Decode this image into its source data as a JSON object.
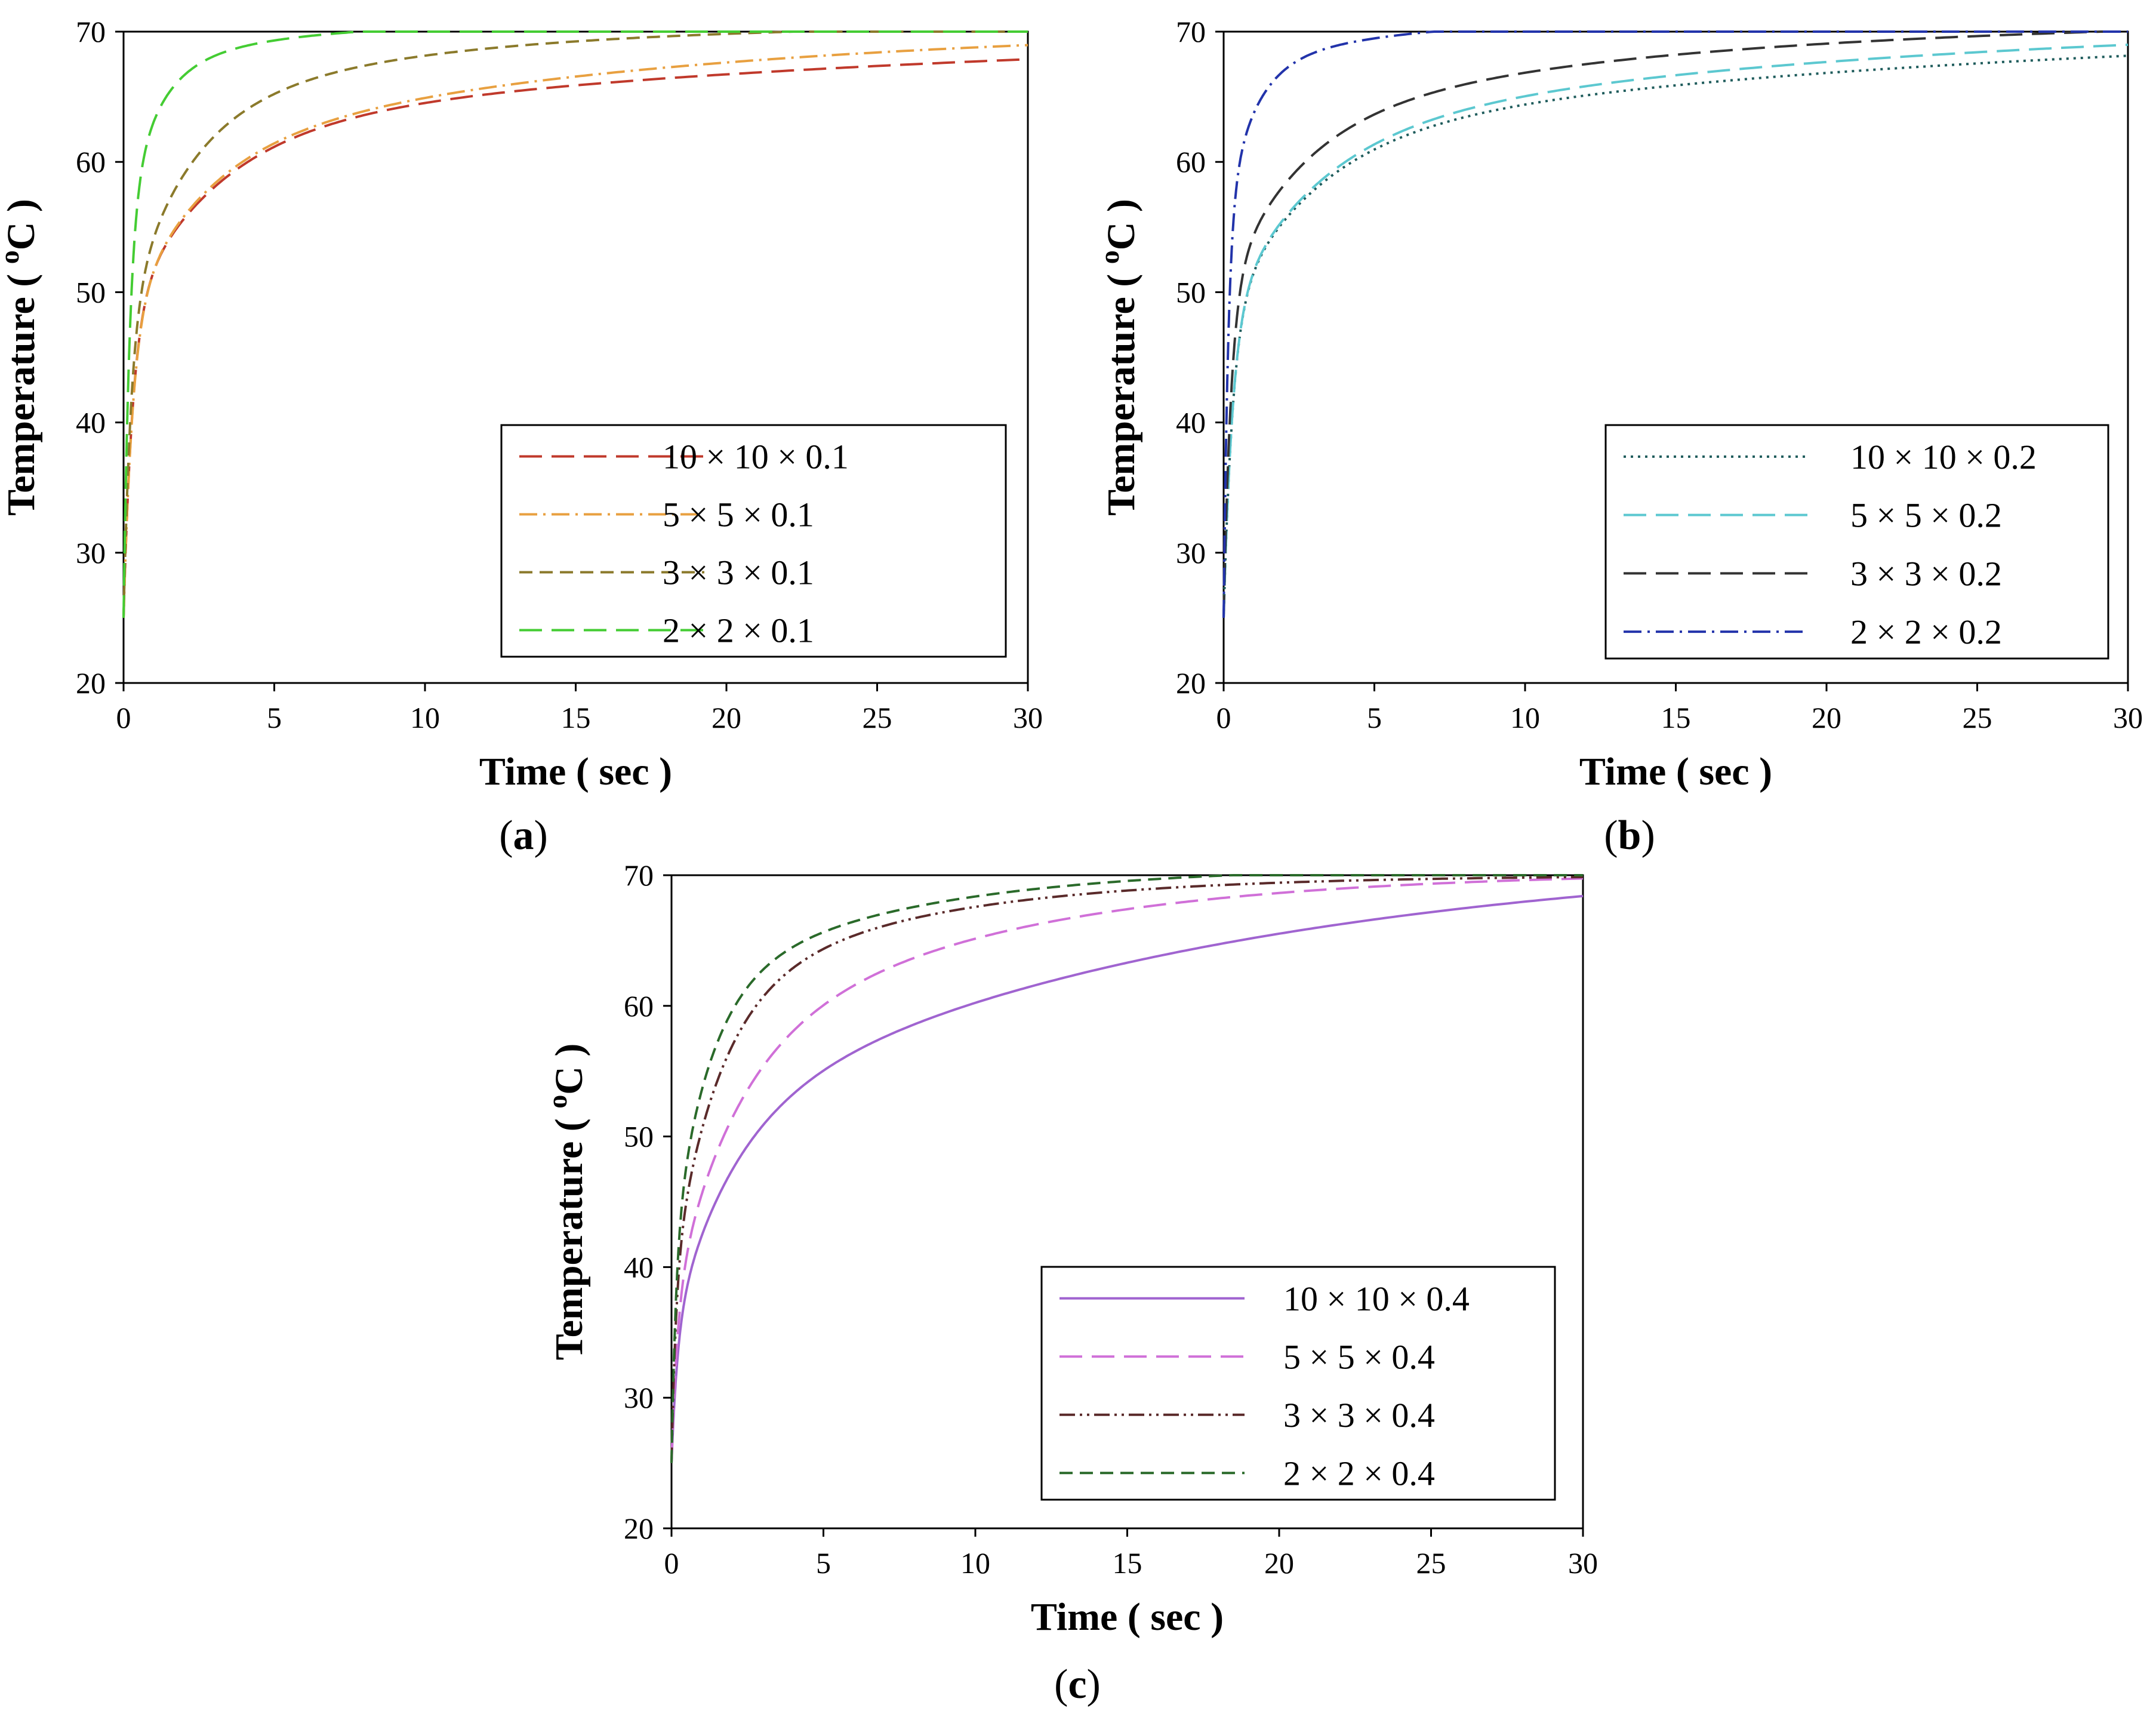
{
  "figure": {
    "x_axis_label": "Time ( sec )",
    "y_axis_label_prefix": "Temperature ( ",
    "y_axis_label_sup": "o",
    "y_axis_label_suffix": "C )"
  },
  "chart_data": [
    {
      "panel": "a",
      "type": "line",
      "xlabel": "Time ( sec )",
      "ylabel": "Temperature ( oC )",
      "xlim": [
        0,
        30
      ],
      "ylim": [
        20,
        70
      ],
      "xticks": [
        "0",
        "5",
        "10",
        "15",
        "20",
        "25",
        "30"
      ],
      "yticks": [
        "20",
        "30",
        "40",
        "50",
        "60",
        "70"
      ],
      "legend_position": "bottom-right",
      "series": [
        {
          "name": "10 × 10 × 0.1",
          "color": "#c0392b",
          "dash": "long-dash",
          "T0": 25,
          "Tmax": 70.2,
          "steps": [
            [
              0.3,
              23.0
            ],
            [
              3.0,
              14.5
            ],
            [
              25.0,
              7.7
            ]
          ]
        },
        {
          "name": "5 × 5 × 0.1",
          "color": "#e8a040",
          "dash": "dash-dot",
          "T0": 25,
          "Tmax": 70.5,
          "steps": [
            [
              0.3,
              22.5
            ],
            [
              2.5,
              13.0
            ],
            [
              16.0,
              10.0
            ]
          ]
        },
        {
          "name": "3 × 3 × 0.1",
          "color": "#8b7a2b",
          "dash": "dash",
          "T0": 25,
          "Tmax": 70.6,
          "steps": [
            [
              0.25,
              22.5
            ],
            [
              2.0,
              16.0
            ],
            [
              9.0,
              7.1
            ]
          ]
        },
        {
          "name": "2 × 2 × 0.1",
          "color": "#44cc33",
          "dash": "long-dash",
          "T0": 25,
          "Tmax": 70.8,
          "steps": [
            [
              0.2,
              30.0
            ],
            [
              1.0,
              12.0
            ],
            [
              5.0,
              3.8
            ]
          ]
        }
      ]
    },
    {
      "panel": "b",
      "type": "line",
      "xlabel": "Time ( sec )",
      "ylabel": "Temperature ( oC )",
      "xlim": [
        0,
        30
      ],
      "ylim": [
        20,
        70
      ],
      "xticks": [
        "0",
        "5",
        "10",
        "15",
        "20",
        "25",
        "30"
      ],
      "yticks": [
        "20",
        "30",
        "40",
        "50",
        "60",
        "70"
      ],
      "legend_position": "bottom-right",
      "series": [
        {
          "name": "10 × 10 × 0.2",
          "color": "#1f5c5c",
          "dash": "dotted",
          "T0": 25,
          "Tmax": 70.8,
          "steps": [
            [
              0.3,
              23.0
            ],
            [
              3.0,
              14.0
            ],
            [
              25.0,
              8.8
            ]
          ]
        },
        {
          "name": "5 × 5 × 0.2",
          "color": "#5cc8d0",
          "dash": "long-dash",
          "T0": 25,
          "Tmax": 71.0,
          "steps": [
            [
              0.3,
              23.0
            ],
            [
              3.0,
              14.0
            ],
            [
              20.0,
              9.0
            ]
          ]
        },
        {
          "name": "3 × 3 × 0.2",
          "color": "#333333",
          "dash": "long-dash",
          "T0": 25,
          "Tmax": 71.0,
          "steps": [
            [
              0.25,
              25.0
            ],
            [
              2.5,
              13.0
            ],
            [
              14.0,
              8.0
            ]
          ]
        },
        {
          "name": "2 × 2 × 0.2",
          "color": "#2233aa",
          "dash": "dash-dot",
          "T0": 25,
          "Tmax": 71.0,
          "steps": [
            [
              0.15,
              30.0
            ],
            [
              0.9,
              12.0
            ],
            [
              5.0,
              4.0
            ]
          ]
        }
      ]
    },
    {
      "panel": "c",
      "type": "line",
      "xlabel": "Time ( sec )",
      "ylabel": "Temperature ( oC )",
      "xlim": [
        0,
        30
      ],
      "ylim": [
        20,
        70
      ],
      "xticks": [
        "0",
        "5",
        "10",
        "15",
        "20",
        "25",
        "30"
      ],
      "yticks": [
        "20",
        "30",
        "40",
        "50",
        "60",
        "70"
      ],
      "legend_position": "bottom-right",
      "series": [
        {
          "name": "10 × 10 × 0.4",
          "color": "#a064d0",
          "dash": "solid",
          "T0": 25,
          "Tmax": 72.0,
          "steps": [
            [
              0.2,
              10.0
            ],
            [
              2.0,
              16.0
            ],
            [
              17.0,
              21.0
            ]
          ]
        },
        {
          "name": "5 × 5 × 0.4",
          "color": "#d070d8",
          "dash": "long-dash",
          "T0": 25,
          "Tmax": 70.3,
          "steps": [
            [
              0.2,
              12.0
            ],
            [
              2.0,
              18.0
            ],
            [
              9.0,
              15.3
            ]
          ]
        },
        {
          "name": "3 × 3 × 0.4",
          "color": "#5a2a2a",
          "dash": "dash-dot-dot",
          "T0": 25,
          "Tmax": 70.0,
          "steps": [
            [
              0.15,
              14.0
            ],
            [
              1.5,
              21.0
            ],
            [
              7.0,
              10.0
            ]
          ]
        },
        {
          "name": "2 × 2 × 0.4",
          "color": "#2a6a2a",
          "dash": "dash",
          "T0": 25,
          "Tmax": 70.7,
          "steps": [
            [
              0.15,
              16.0
            ],
            [
              1.2,
              20.0
            ],
            [
              7.0,
              9.7
            ]
          ]
        }
      ]
    }
  ],
  "panels": {
    "a": {
      "label": "a",
      "open": "(",
      "close": ")"
    },
    "b": {
      "label": "b",
      "open": "(",
      "close": ")"
    },
    "c": {
      "label": "c",
      "open": "(",
      "close": ")"
    }
  }
}
